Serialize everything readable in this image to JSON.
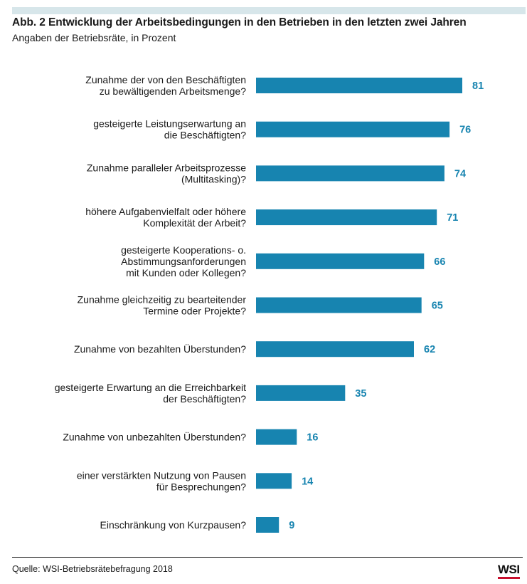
{
  "header": {
    "title": "Abb. 2 Entwicklung der Arbeitsbedingungen in den Betrieben in den letzten zwei Jahren",
    "subtitle": "Angaben der Betriebsräte, in Prozent"
  },
  "chart_data": {
    "type": "bar",
    "orientation": "horizontal",
    "title": "Abb. 2 Entwicklung der Arbeitsbedingungen in den Betrieben in den letzten zwei Jahren",
    "subtitle": "Angaben der Betriebsräte, in Prozent",
    "categories": [
      [
        "Zunahme der von den Beschäftigten",
        "zu bewältigenden Arbeitsmenge?"
      ],
      [
        "gesteigerte Leistungserwartung an",
        "die Beschäftigten?"
      ],
      [
        "Zunahme paralleler Arbeitsprozesse",
        "(Multitasking)?"
      ],
      [
        "höhere Aufgabenvielfalt oder höhere",
        "Komplexität der Arbeit?"
      ],
      [
        "gesteigerte Kooperations- o.",
        "Abstimmungsanforderungen",
        "mit Kunden oder Kollegen?"
      ],
      [
        "Zunahme gleichzeitig zu bearteitender",
        "Termine oder Projekte?"
      ],
      [
        "Zunahme von bezahlten Überstunden?"
      ],
      [
        "gesteigerte Erwartung an die Erreichbarkeit",
        "der Beschäftigten?"
      ],
      [
        "Zunahme von unbezahlten Überstunden?"
      ],
      [
        "einer verstärkten Nutzung von Pausen",
        "für Besprechungen?"
      ],
      [
        "Einschränkung von Kurzpausen?"
      ]
    ],
    "values": [
      81,
      76,
      74,
      71,
      66,
      65,
      62,
      35,
      16,
      14,
      9
    ],
    "xlabel": "",
    "ylabel": "",
    "xlim": [
      0,
      81
    ],
    "grid": false,
    "legend": "none",
    "data_labels": true,
    "bar_color": "#1784b0",
    "label_color": "#1784b0"
  },
  "footer": {
    "source": "Quelle: WSI-Betriebsrätebefragung 2018",
    "logo_text": "WSI",
    "logo_accent": "#c8102e"
  }
}
